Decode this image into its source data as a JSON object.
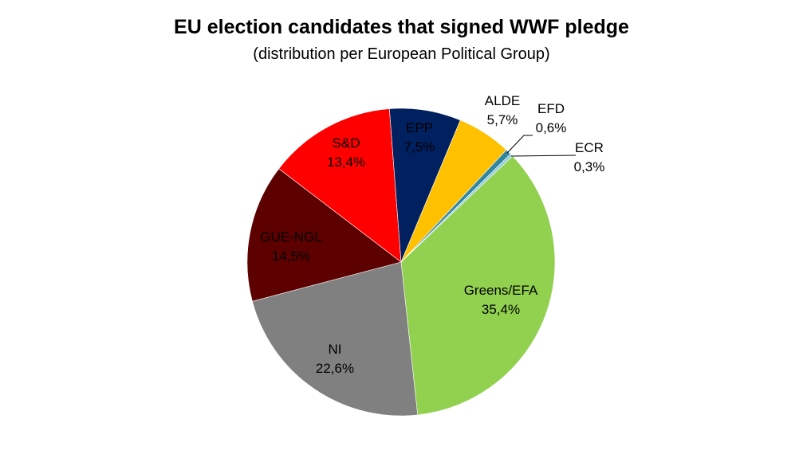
{
  "chart_data": {
    "type": "pie",
    "title": "EU election candidates that signed WWF pledge",
    "subtitle": "(distribution per European Political Group)",
    "slices": [
      {
        "label": "Greens/EFA",
        "value": 35.4,
        "display": "35,4%",
        "color": "#92d050"
      },
      {
        "label": "NI",
        "value": 22.6,
        "display": "22,6%",
        "color": "#808080"
      },
      {
        "label": "GUE-NGL",
        "value": 14.5,
        "display": "14,5%",
        "color": "#5c0000"
      },
      {
        "label": "S&D",
        "value": 13.4,
        "display": "13,4%",
        "color": "#ff0000"
      },
      {
        "label": "EPP",
        "value": 7.5,
        "display": "7,5%",
        "color": "#002060"
      },
      {
        "label": "ALDE",
        "value": 5.7,
        "display": "5,7%",
        "color": "#ffc000"
      },
      {
        "label": "EFD",
        "value": 0.6,
        "display": "0,6%",
        "color": "#31859c"
      },
      {
        "label": "ECR",
        "value": 0.3,
        "display": "0,3%",
        "color": "#93cddd"
      }
    ],
    "legend": "none"
  }
}
